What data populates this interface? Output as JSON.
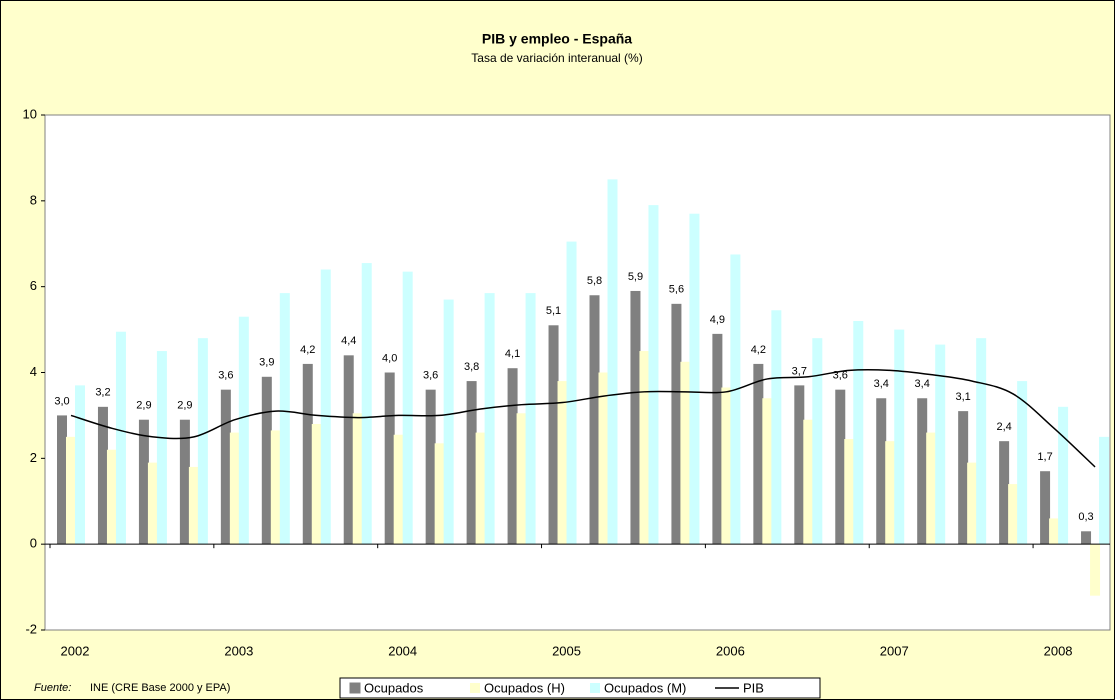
{
  "chart_data": {
    "type": "bar_line",
    "title": "PIB y empleo - España",
    "subtitle": "Tasa de variación interanual (%)",
    "source": {
      "label": "Fuente:",
      "text": "INE (CRE Base 2000 y EPA)"
    },
    "categories": [
      "2002",
      null,
      null,
      null,
      "2003",
      null,
      null,
      null,
      "2004",
      null,
      null,
      null,
      "2005",
      null,
      null,
      null,
      "2006",
      null,
      null,
      null,
      "2007",
      null,
      null,
      null,
      "2008",
      null
    ],
    "series": [
      {
        "name": "Ocupados",
        "color": "#808080",
        "kind": "bar",
        "values": [
          3.0,
          3.2,
          2.9,
          2.9,
          3.6,
          3.9,
          4.2,
          4.4,
          4.0,
          3.6,
          3.8,
          4.1,
          5.1,
          5.8,
          5.9,
          5.6,
          4.9,
          4.2,
          3.7,
          3.6,
          3.4,
          3.4,
          3.1,
          2.4,
          1.7,
          0.3
        ],
        "value_labels": [
          "3,0",
          "3,2",
          "2,9",
          "2,9",
          "3,6",
          "3,9",
          "4,2",
          "4,4",
          "4,0",
          "3,6",
          "3,8",
          "4,1",
          "5,1",
          "5,8",
          "5,9",
          "5,6",
          "4,9",
          "4,2",
          "3,7",
          "3,6",
          "3,4",
          "3,4",
          "3,1",
          "2,4",
          "1,7",
          "0,3"
        ]
      },
      {
        "name": "Ocupados (H)",
        "color": "#ffffcc",
        "kind": "bar",
        "values": [
          2.5,
          2.2,
          1.9,
          1.8,
          2.6,
          2.65,
          2.8,
          3.05,
          2.55,
          2.35,
          2.6,
          3.05,
          3.8,
          4.0,
          4.5,
          4.25,
          3.65,
          3.4,
          2.9,
          2.45,
          2.4,
          2.6,
          1.9,
          1.4,
          0.6,
          -1.2
        ]
      },
      {
        "name": "Ocupados (M)",
        "color": "#ccffff",
        "kind": "bar",
        "values": [
          3.7,
          4.95,
          4.5,
          4.8,
          5.3,
          5.85,
          6.4,
          6.55,
          6.35,
          5.7,
          5.85,
          5.85,
          7.05,
          8.5,
          7.9,
          7.7,
          6.75,
          5.45,
          4.8,
          5.2,
          5.0,
          4.65,
          4.8,
          3.8,
          3.2,
          2.5
        ]
      },
      {
        "name": "PIB",
        "color": "#000000",
        "kind": "line",
        "values": [
          3.0,
          2.7,
          2.5,
          2.5,
          2.9,
          3.1,
          3.0,
          2.95,
          3.0,
          3.0,
          3.15,
          3.25,
          3.3,
          3.45,
          3.55,
          3.55,
          3.55,
          3.85,
          3.9,
          4.05,
          4.05,
          3.95,
          3.8,
          3.5,
          2.7,
          1.8
        ]
      }
    ],
    "ylim": [
      -2,
      10
    ],
    "yticks": [
      -2,
      0,
      2,
      4,
      6,
      8,
      10
    ],
    "grid": false
  }
}
